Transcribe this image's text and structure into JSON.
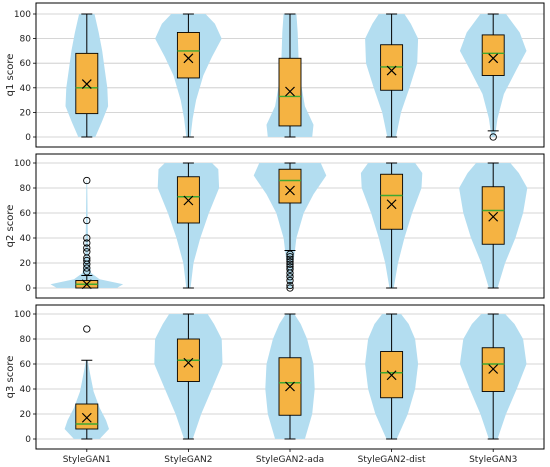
{
  "chart_data": {
    "type": "violin-box",
    "categories": [
      "StyleGAN1",
      "StyleGAN2",
      "StyleGAN2-ada",
      "StyleGAN2-dist",
      "StyleGAN3"
    ],
    "ylim": [
      0,
      100
    ],
    "yticks": [
      "0",
      "20",
      "40",
      "60",
      "80",
      "100"
    ],
    "grid": "horizontal",
    "colors": {
      "violin": "#b3ddf0",
      "box": "#f5b342",
      "median": "#3fa832",
      "mean_marker": "#000000",
      "frame": "#000000",
      "grid": "#c8c8c8"
    },
    "panels": [
      {
        "ylabel": "q1 score",
        "series": [
          {
            "category": "StyleGAN1",
            "min": 0,
            "q1": 19,
            "median": 40,
            "q3": 68,
            "max": 100,
            "mean": 43,
            "outliers": [],
            "violin": [
              [
                0,
                0.2
              ],
              [
                12,
                0.35
              ],
              [
                25,
                0.5
              ],
              [
                40,
                0.48
              ],
              [
                55,
                0.42
              ],
              [
                70,
                0.36
              ],
              [
                85,
                0.28
              ],
              [
                100,
                0.18
              ]
            ]
          },
          {
            "category": "StyleGAN2",
            "min": 0,
            "q1": 48,
            "median": 70,
            "q3": 85,
            "max": 100,
            "mean": 64,
            "outliers": [],
            "violin": [
              [
                0,
                0.05
              ],
              [
                15,
                0.1
              ],
              [
                30,
                0.18
              ],
              [
                50,
                0.35
              ],
              [
                65,
                0.55
              ],
              [
                80,
                0.78
              ],
              [
                92,
                0.62
              ],
              [
                100,
                0.4
              ]
            ]
          },
          {
            "category": "StyleGAN2-ada",
            "min": 0,
            "q1": 9,
            "median": 33,
            "q3": 64,
            "max": 100,
            "mean": 37,
            "outliers": [],
            "violin": [
              [
                0,
                0.52
              ],
              [
                10,
                0.55
              ],
              [
                25,
                0.35
              ],
              [
                45,
                0.25
              ],
              [
                65,
                0.2
              ],
              [
                85,
                0.18
              ],
              [
                100,
                0.15
              ]
            ]
          },
          {
            "category": "StyleGAN2-dist",
            "min": 0,
            "q1": 38,
            "median": 57,
            "q3": 75,
            "max": 100,
            "mean": 54,
            "outliers": [],
            "violin": [
              [
                0,
                0.1
              ],
              [
                20,
                0.22
              ],
              [
                40,
                0.42
              ],
              [
                60,
                0.6
              ],
              [
                80,
                0.62
              ],
              [
                92,
                0.45
              ],
              [
                100,
                0.3
              ]
            ]
          },
          {
            "category": "StyleGAN3",
            "min": 5,
            "q1": 50,
            "median": 68,
            "q3": 83,
            "max": 100,
            "mean": 64,
            "outliers": [
              0
            ],
            "violin": [
              [
                0,
                0.04
              ],
              [
                15,
                0.1
              ],
              [
                35,
                0.25
              ],
              [
                55,
                0.55
              ],
              [
                70,
                0.78
              ],
              [
                85,
                0.62
              ],
              [
                100,
                0.3
              ]
            ]
          }
        ]
      },
      {
        "ylabel": "q2 score",
        "series": [
          {
            "category": "StyleGAN1",
            "min": 0,
            "q1": 0,
            "median": 3,
            "q3": 6,
            "max": 10,
            "mean": 3,
            "outliers": [
              13,
              16,
              19,
              22,
              24,
              29,
              32,
              36,
              40,
              54,
              86
            ],
            "violin": [
              [
                0,
                0.7
              ],
              [
                3,
                0.85
              ],
              [
                7,
                0.3
              ],
              [
                12,
                0.1
              ],
              [
                25,
                0.04
              ],
              [
                50,
                0.02
              ],
              [
                86,
                0.01
              ]
            ]
          },
          {
            "category": "StyleGAN2",
            "min": 0,
            "q1": 52,
            "median": 73,
            "q3": 89,
            "max": 100,
            "mean": 70,
            "outliers": [],
            "violin": [
              [
                0,
                0.05
              ],
              [
                20,
                0.12
              ],
              [
                40,
                0.28
              ],
              [
                60,
                0.48
              ],
              [
                80,
                0.72
              ],
              [
                95,
                0.7
              ],
              [
                100,
                0.55
              ]
            ]
          },
          {
            "category": "StyleGAN2-ada",
            "min": 30,
            "q1": 68,
            "median": 86,
            "q3": 95,
            "max": 100,
            "mean": 78,
            "outliers": [
              0,
              2,
              6,
              9,
              12,
              15,
              17,
              19,
              21,
              23,
              25,
              27
            ],
            "violin": [
              [
                0,
                0.04
              ],
              [
                20,
                0.08
              ],
              [
                40,
                0.15
              ],
              [
                60,
                0.32
              ],
              [
                75,
                0.55
              ],
              [
                90,
                0.85
              ],
              [
                100,
                0.72
              ]
            ]
          },
          {
            "category": "StyleGAN2-dist",
            "min": 0,
            "q1": 47,
            "median": 74,
            "q3": 91,
            "max": 100,
            "mean": 67,
            "outliers": [],
            "violin": [
              [
                0,
                0.05
              ],
              [
                20,
                0.15
              ],
              [
                40,
                0.3
              ],
              [
                60,
                0.48
              ],
              [
                80,
                0.7
              ],
              [
                92,
                0.72
              ],
              [
                100,
                0.55
              ]
            ]
          },
          {
            "category": "StyleGAN3",
            "min": 0,
            "q1": 35,
            "median": 62,
            "q3": 81,
            "max": 100,
            "mean": 57,
            "outliers": [],
            "violin": [
              [
                0,
                0.1
              ],
              [
                20,
                0.28
              ],
              [
                40,
                0.52
              ],
              [
                60,
                0.7
              ],
              [
                80,
                0.8
              ],
              [
                92,
                0.6
              ],
              [
                100,
                0.4
              ]
            ]
          }
        ]
      },
      {
        "ylabel": "q3 score",
        "series": [
          {
            "category": "StyleGAN1",
            "min": 0,
            "q1": 8,
            "median": 12,
            "q3": 28,
            "max": 63,
            "mean": 17,
            "outliers": [
              88
            ],
            "violin": [
              [
                0,
                0.3
              ],
              [
                8,
                0.52
              ],
              [
                15,
                0.45
              ],
              [
                25,
                0.3
              ],
              [
                38,
                0.16
              ],
              [
                55,
                0.06
              ],
              [
                63,
                0.02
              ]
            ]
          },
          {
            "category": "StyleGAN2",
            "min": 0,
            "q1": 46,
            "median": 63,
            "q3": 80,
            "max": 100,
            "mean": 61,
            "outliers": [],
            "violin": [
              [
                0,
                0.1
              ],
              [
                20,
                0.3
              ],
              [
                40,
                0.55
              ],
              [
                60,
                0.8
              ],
              [
                80,
                0.78
              ],
              [
                92,
                0.6
              ],
              [
                100,
                0.45
              ]
            ]
          },
          {
            "category": "StyleGAN2-ada",
            "min": 0,
            "q1": 19,
            "median": 45,
            "q3": 65,
            "max": 100,
            "mean": 42,
            "outliers": [],
            "violin": [
              [
                0,
                0.35
              ],
              [
                20,
                0.52
              ],
              [
                40,
                0.58
              ],
              [
                60,
                0.55
              ],
              [
                80,
                0.4
              ],
              [
                92,
                0.25
              ],
              [
                100,
                0.1
              ]
            ]
          },
          {
            "category": "StyleGAN2-dist",
            "min": 0,
            "q1": 33,
            "median": 53,
            "q3": 70,
            "max": 100,
            "mean": 51,
            "outliers": [],
            "violin": [
              [
                0,
                0.12
              ],
              [
                20,
                0.38
              ],
              [
                40,
                0.55
              ],
              [
                60,
                0.62
              ],
              [
                80,
                0.55
              ],
              [
                92,
                0.4
              ],
              [
                100,
                0.22
              ]
            ]
          },
          {
            "category": "StyleGAN3",
            "min": 0,
            "q1": 38,
            "median": 60,
            "q3": 73,
            "max": 100,
            "mean": 56,
            "outliers": [],
            "violin": [
              [
                0,
                0.1
              ],
              [
                20,
                0.3
              ],
              [
                40,
                0.55
              ],
              [
                60,
                0.78
              ],
              [
                80,
                0.7
              ],
              [
                92,
                0.5
              ],
              [
                100,
                0.28
              ]
            ]
          }
        ]
      }
    ]
  }
}
